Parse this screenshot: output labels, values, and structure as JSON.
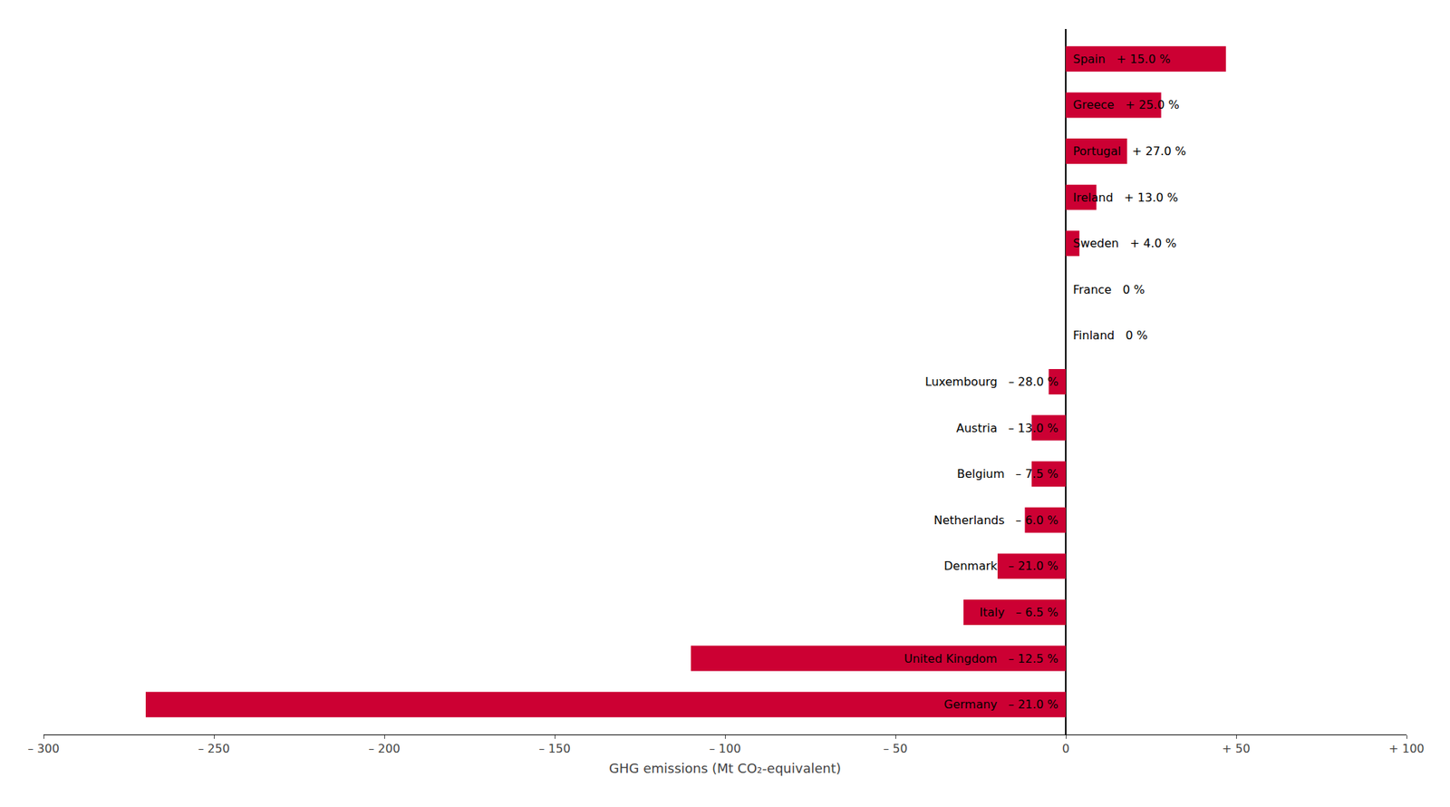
{
  "chart_data": {
    "type": "bar",
    "orientation": "horizontal",
    "categories": [
      "Germany",
      "United Kingdom",
      "Italy",
      "Denmark",
      "Netherlands",
      "Belgium",
      "Austria",
      "Luxembourg",
      "Finland",
      "France",
      "Sweden",
      "Ireland",
      "Portugal",
      "Greece",
      "Spain"
    ],
    "values": [
      -270,
      -110,
      -30,
      -20,
      -12,
      -10,
      -10,
      -5,
      0,
      0,
      4,
      9,
      18,
      28,
      47
    ],
    "annotations": [
      "Germany   – 21.0 %",
      "United Kingdom   – 12.5 %",
      "Italy   – 6.5 %",
      "Denmark   – 21.0 %",
      "Netherlands   – 6.0 %",
      "Belgium   – 7.5 %",
      "Austria   – 13.0 %",
      "Luxembourg   – 28.0 %",
      "Finland   0 %",
      "France   0 %",
      "Sweden   + 4.0 %",
      "Ireland   + 13.0 %",
      "Portugal   + 27.0 %",
      "Greece   + 25.0 %",
      "Spain   + 15.0 %"
    ],
    "color": "#cc0033",
    "xlabel": "GHG emissions (Mt CO₂-equivalent)",
    "xlim": [
      -300,
      100
    ],
    "xticks": [
      {
        "value": -300,
        "label": "– 300"
      },
      {
        "value": -250,
        "label": "– 250"
      },
      {
        "value": -200,
        "label": "– 200"
      },
      {
        "value": -150,
        "label": "– 150"
      },
      {
        "value": -100,
        "label": "– 100"
      },
      {
        "value": -50,
        "label": "– 50"
      },
      0,
      {
        "value": 50,
        "label": "+ 50"
      },
      {
        "value": 100,
        "label": "+ 100"
      }
    ],
    "grid": false,
    "tick_labels": "x"
  }
}
